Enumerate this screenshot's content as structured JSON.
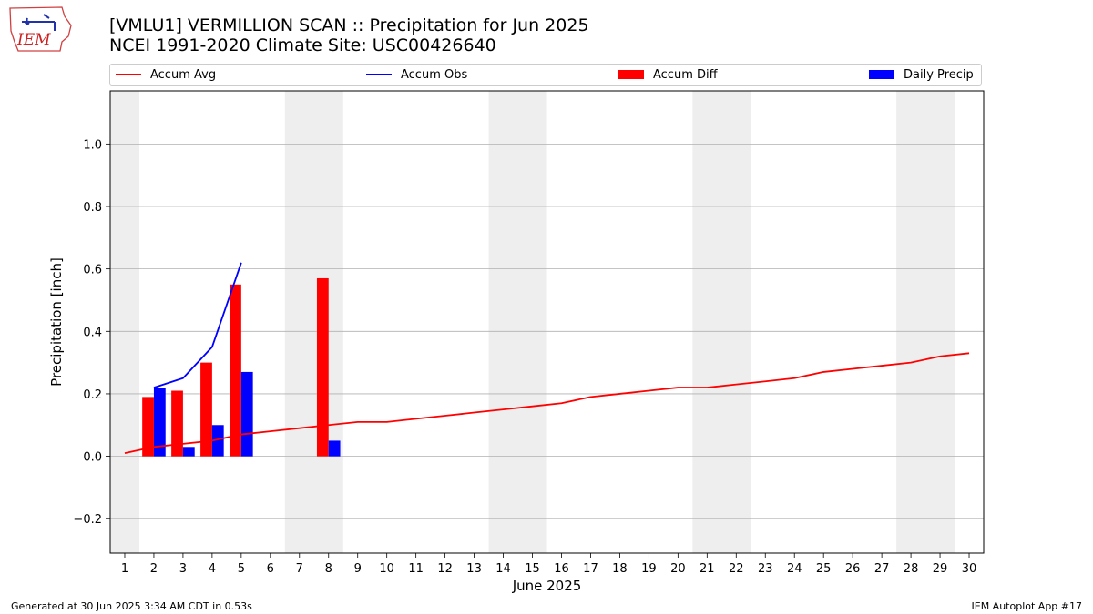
{
  "header": {
    "title_line1": "[VMLU1] VERMILLION SCAN :: Precipitation for Jun 2025",
    "title_line2": "NCEI 1991-2020 Climate Site: USC00426640",
    "logo_text": "IEM"
  },
  "footer": {
    "left": "Generated at 30 Jun 2025 3:34 AM CDT in 0.53s",
    "right": "IEM Autoplot App #17"
  },
  "colors": {
    "avg": "#ff0000",
    "obs": "#0000ff",
    "diff": "#ff0000",
    "daily": "#0000ff",
    "weekend_shade": "#eeeeee",
    "grid": "#b0b0b0"
  },
  "chart_data": {
    "type": "bar",
    "title": "[VMLU1] VERMILLION SCAN :: Precipitation for Jun 2025",
    "subtitle": "NCEI 1991-2020 Climate Site: USC00426640",
    "xlabel": "June 2025",
    "ylabel": "Precipitation [inch]",
    "xlim": [
      0.5,
      30.5
    ],
    "ylim": [
      -0.31,
      1.17
    ],
    "y_ticks": [
      -0.2,
      0.0,
      0.2,
      0.4,
      0.6,
      0.8,
      1.0
    ],
    "y_tick_labels": [
      "−0.2",
      "0.0",
      "0.2",
      "0.4",
      "0.6",
      "0.8",
      "1.0"
    ],
    "x_ticks": [
      1,
      2,
      3,
      4,
      5,
      6,
      7,
      8,
      9,
      10,
      11,
      12,
      13,
      14,
      15,
      16,
      17,
      18,
      19,
      20,
      21,
      22,
      23,
      24,
      25,
      26,
      27,
      28,
      29,
      30
    ],
    "grid": "horizontal",
    "legend_placement": "top",
    "shaded_days": [
      [
        0.5,
        1.5
      ],
      [
        6.5,
        8.5
      ],
      [
        13.5,
        15.5
      ],
      [
        20.5,
        22.5
      ],
      [
        27.5,
        29.5
      ]
    ],
    "series": [
      {
        "name": "Accum Avg",
        "kind": "line",
        "color": "#ff0000",
        "x": [
          1,
          2,
          3,
          4,
          5,
          6,
          7,
          8,
          9,
          10,
          11,
          12,
          13,
          14,
          15,
          16,
          17,
          18,
          19,
          20,
          21,
          22,
          23,
          24,
          25,
          26,
          27,
          28,
          29,
          30
        ],
        "values": [
          0.01,
          0.03,
          0.04,
          0.05,
          0.07,
          0.08,
          0.09,
          0.1,
          0.11,
          0.11,
          0.12,
          0.13,
          0.14,
          0.15,
          0.16,
          0.17,
          0.19,
          0.2,
          0.21,
          0.22,
          0.22,
          0.23,
          0.24,
          0.25,
          0.27,
          0.28,
          0.29,
          0.3,
          0.32,
          0.33
        ]
      },
      {
        "name": "Accum Obs",
        "kind": "line",
        "color": "#0000ff",
        "x": [
          2,
          3,
          4,
          5
        ],
        "values": [
          0.22,
          0.25,
          0.35,
          0.62
        ]
      },
      {
        "name": "Accum Diff",
        "kind": "bar",
        "color": "#ff0000",
        "x": [
          2,
          3,
          4,
          5,
          8
        ],
        "values": [
          0.19,
          0.21,
          0.3,
          0.55,
          0.57
        ]
      },
      {
        "name": "Daily Precip",
        "kind": "bar",
        "color": "#0000ff",
        "x": [
          2,
          3,
          4,
          5,
          8
        ],
        "values": [
          0.22,
          0.03,
          0.1,
          0.27,
          0.05
        ]
      }
    ]
  }
}
